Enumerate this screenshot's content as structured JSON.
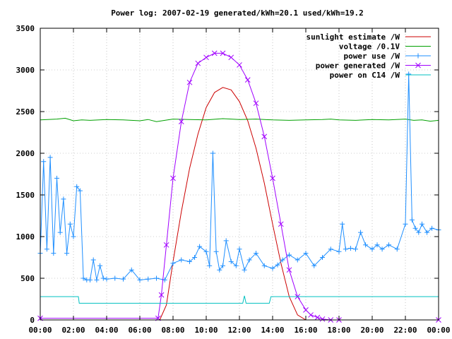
{
  "chart_data": {
    "type": "line",
    "title": "Power log: 2007-02-19 generated/kWh=20.1 used/kWh=19.2",
    "xlabel": "",
    "ylabel": "",
    "xlim": [
      0,
      24
    ],
    "ylim": [
      0,
      3500
    ],
    "grid": true,
    "legend_position": "top-right",
    "x_ticks": [
      0,
      2,
      4,
      6,
      8,
      10,
      12,
      14,
      16,
      18,
      20,
      22,
      24
    ],
    "x_tick_labels": [
      "00:00",
      "02:00",
      "04:00",
      "06:00",
      "08:00",
      "10:00",
      "12:00",
      "14:00",
      "16:00",
      "18:00",
      "20:00",
      "22:00",
      "00:00"
    ],
    "y_ticks": [
      0,
      500,
      1000,
      1500,
      2000,
      2500,
      3000,
      3500
    ],
    "y_tick_labels": [
      "0",
      "500",
      "1000",
      "1500",
      "2000",
      "2500",
      "3000",
      "3500"
    ],
    "series": [
      {
        "name": "sunlight estimate /W",
        "color": "#cc0000",
        "marker": "none",
        "x": [
          0,
          7.2,
          7.6,
          8,
          8.5,
          9,
          9.5,
          10,
          10.5,
          11,
          11.5,
          12,
          12.5,
          13,
          13.5,
          14,
          14.5,
          15,
          15.5,
          16,
          16.5,
          17,
          24
        ],
        "y": [
          0,
          0,
          180,
          700,
          1300,
          1820,
          2230,
          2550,
          2730,
          2790,
          2760,
          2620,
          2390,
          2060,
          1640,
          1150,
          680,
          280,
          60,
          0,
          0,
          0,
          0
        ]
      },
      {
        "name": "voltage /0.1V",
        "color": "#00a000",
        "marker": "none",
        "x": [
          0,
          1,
          1.5,
          2,
          2.5,
          3,
          4,
          5,
          6,
          6.5,
          7,
          7.5,
          8,
          9,
          10,
          11,
          12,
          13,
          14,
          15,
          16,
          17,
          17.5,
          18,
          19,
          20,
          21,
          22,
          22.5,
          23,
          23.5,
          24
        ],
        "y": [
          2400,
          2410,
          2420,
          2390,
          2400,
          2395,
          2405,
          2400,
          2390,
          2405,
          2380,
          2395,
          2410,
          2405,
          2400,
          2415,
          2405,
          2410,
          2400,
          2395,
          2400,
          2405,
          2410,
          2400,
          2395,
          2405,
          2400,
          2410,
          2395,
          2400,
          2385,
          2395
        ]
      },
      {
        "name": "power use /W",
        "color": "#1f8fff",
        "marker": "plus",
        "x": [
          0,
          0.2,
          0.4,
          0.6,
          0.8,
          1,
          1.2,
          1.4,
          1.6,
          1.8,
          2,
          2.2,
          2.4,
          2.6,
          2.8,
          3,
          3.2,
          3.4,
          3.6,
          3.8,
          4,
          4.5,
          5,
          5.5,
          6,
          6.5,
          7,
          7.5,
          8,
          8.5,
          9,
          9.3,
          9.6,
          10,
          10.2,
          10.4,
          10.6,
          10.8,
          11,
          11.2,
          11.5,
          11.8,
          12,
          12.3,
          12.6,
          13,
          13.5,
          14,
          14.3,
          14.6,
          15,
          15.5,
          16,
          16.5,
          17,
          17.5,
          18,
          18.2,
          18.4,
          18.7,
          19,
          19.3,
          19.6,
          20,
          20.3,
          20.6,
          21,
          21.5,
          22,
          22.2,
          22.4,
          22.6,
          22.8,
          23,
          23.3,
          23.6,
          24
        ],
        "y": [
          800,
          1900,
          850,
          1950,
          800,
          1700,
          1050,
          1450,
          800,
          1150,
          1000,
          1600,
          1550,
          500,
          480,
          480,
          720,
          480,
          650,
          500,
          490,
          500,
          490,
          600,
          480,
          490,
          500,
          480,
          680,
          720,
          700,
          750,
          880,
          820,
          650,
          2000,
          820,
          600,
          650,
          950,
          700,
          650,
          850,
          600,
          720,
          800,
          650,
          620,
          660,
          720,
          780,
          720,
          800,
          650,
          750,
          850,
          820,
          1150,
          850,
          860,
          850,
          1050,
          900,
          850,
          900,
          850,
          900,
          850,
          1150,
          2950,
          1200,
          1100,
          1050,
          1150,
          1050,
          1100,
          1080
        ]
      },
      {
        "name": "power generated /W",
        "color": "#a000ff",
        "marker": "cross",
        "x": [
          0,
          7.1,
          7.3,
          7.6,
          8,
          8.5,
          9,
          9.5,
          10,
          10.5,
          11,
          11.5,
          12,
          12.5,
          13,
          13.5,
          14,
          14.5,
          15,
          15.5,
          16,
          16.3,
          16.7,
          17,
          17.5,
          18,
          24
        ],
        "y": [
          20,
          20,
          300,
          900,
          1700,
          2380,
          2850,
          3080,
          3150,
          3200,
          3200,
          3150,
          3060,
          2880,
          2600,
          2200,
          1700,
          1150,
          600,
          280,
          120,
          60,
          30,
          10,
          0,
          0,
          0
        ]
      },
      {
        "name": "power on C14 /W",
        "color": "#00c0c0",
        "marker": "none",
        "x": [
          0,
          2.3,
          2.35,
          12.2,
          12.3,
          12.4,
          13.8,
          13.9,
          24
        ],
        "y": [
          280,
          280,
          200,
          200,
          290,
          200,
          200,
          280,
          280
        ]
      }
    ]
  }
}
